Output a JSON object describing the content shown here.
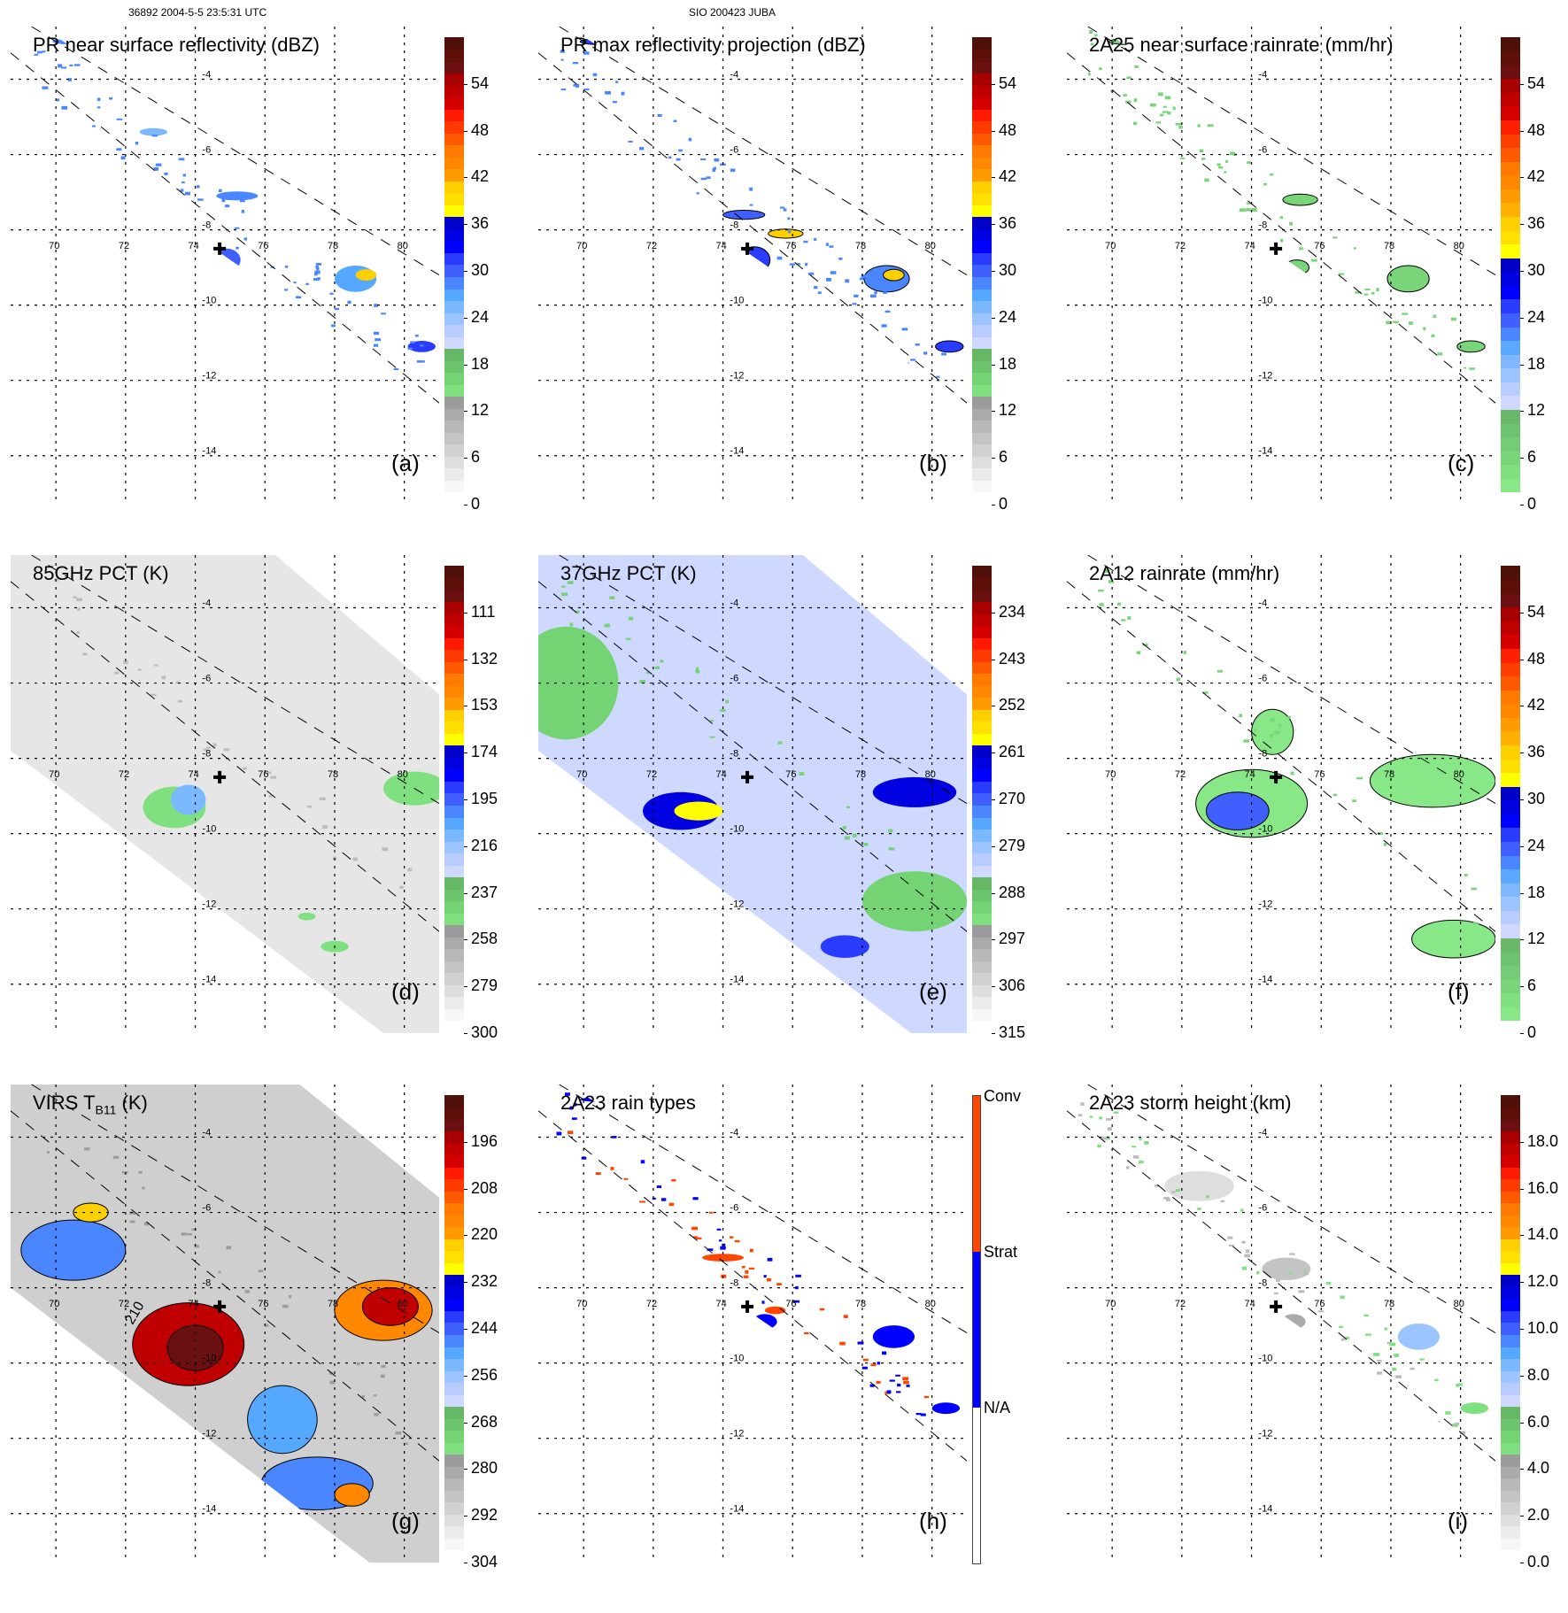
{
  "header": {
    "left": "36892 2004-5-5 23:5:31 UTC",
    "center": "SIO 200423 JUBA"
  },
  "chart_data": [
    {
      "id": "a",
      "type": "heatmap",
      "title": "PR near surface reflectivity (dBZ)",
      "panel_label": "(a)",
      "colorbar": {
        "ticks": [
          "0",
          "6",
          "12",
          "18",
          "24",
          "30",
          "36",
          "42",
          "48",
          "54"
        ],
        "range": [
          0,
          60
        ],
        "palette": "nasa"
      },
      "xticks": [
        "70",
        "72",
        "74",
        "76",
        "78",
        "80"
      ],
      "yticks": [
        "-4",
        "-6",
        "-8",
        "-10",
        "-12",
        "-14"
      ],
      "xlim": [
        68.7,
        81
      ],
      "ylim": [
        -15.3,
        -2.6
      ],
      "swath": "pr",
      "storm_center": {
        "lon": 74.7,
        "lat": -8.5
      }
    },
    {
      "id": "b",
      "type": "heatmap",
      "title": "PR max reflectivity projection (dBZ)",
      "panel_label": "(b)",
      "colorbar": {
        "ticks": [
          "0",
          "6",
          "12",
          "18",
          "24",
          "30",
          "36",
          "42",
          "48",
          "54"
        ],
        "range": [
          0,
          60
        ],
        "palette": "nasa"
      },
      "xticks": [
        "70",
        "72",
        "74",
        "76",
        "78",
        "80"
      ],
      "yticks": [
        "-4",
        "-6",
        "-8",
        "-10",
        "-12",
        "-14"
      ],
      "xlim": [
        68.7,
        81
      ],
      "ylim": [
        -15.3,
        -2.6
      ],
      "swath": "pr",
      "storm_center": {
        "lon": 74.7,
        "lat": -8.5
      }
    },
    {
      "id": "c",
      "type": "heatmap",
      "title": "2A25 near surface rainrate (mm/hr)",
      "panel_label": "(c)",
      "colorbar": {
        "ticks": [
          "0",
          "6",
          "12",
          "18",
          "24",
          "30",
          "36",
          "42",
          "48",
          "54"
        ],
        "range": [
          0,
          60
        ],
        "palette": "rain"
      },
      "xticks": [
        "70",
        "72",
        "74",
        "76",
        "78",
        "80"
      ],
      "yticks": [
        "-4",
        "-6",
        "-8",
        "-10",
        "-12",
        "-14"
      ],
      "xlim": [
        68.7,
        81
      ],
      "ylim": [
        -15.3,
        -2.6
      ],
      "swath": "pr",
      "storm_center": {
        "lon": 74.7,
        "lat": -8.5
      }
    },
    {
      "id": "d",
      "type": "heatmap",
      "title": "85GHz PCT (K)",
      "panel_label": "(d)",
      "colorbar": {
        "ticks": [
          "300",
          "279",
          "258",
          "237",
          "216",
          "195",
          "174",
          "153",
          "132",
          "111"
        ],
        "range": [
          300,
          90
        ],
        "palette": "nasa"
      },
      "xticks": [
        "70",
        "72",
        "74",
        "76",
        "78",
        "80"
      ],
      "yticks": [
        "-4",
        "-6",
        "-8",
        "-10",
        "-12",
        "-14"
      ],
      "xlim": [
        68.7,
        81
      ],
      "ylim": [
        -15.3,
        -2.6
      ],
      "swath": "tmi",
      "storm_center": {
        "lon": 74.7,
        "lat": -8.5
      }
    },
    {
      "id": "e",
      "type": "heatmap",
      "title": "37GHz PCT (K)",
      "panel_label": "(e)",
      "colorbar": {
        "ticks": [
          "315",
          "306",
          "297",
          "288",
          "279",
          "270",
          "261",
          "252",
          "243",
          "234"
        ],
        "range": [
          315,
          225
        ],
        "palette": "nasa"
      },
      "xticks": [
        "70",
        "72",
        "74",
        "76",
        "78",
        "80"
      ],
      "yticks": [
        "-4",
        "-6",
        "-8",
        "-10",
        "-12",
        "-14"
      ],
      "xlim": [
        68.7,
        81
      ],
      "ylim": [
        -15.3,
        -2.6
      ],
      "swath": "tmi",
      "storm_center": {
        "lon": 74.7,
        "lat": -8.5
      }
    },
    {
      "id": "f",
      "type": "heatmap",
      "title": "2A12 rainrate (mm/hr)",
      "panel_label": "(f)",
      "colorbar": {
        "ticks": [
          "0",
          "6",
          "12",
          "18",
          "24",
          "30",
          "36",
          "42",
          "48",
          "54"
        ],
        "range": [
          0,
          60
        ],
        "palette": "rain"
      },
      "xticks": [
        "70",
        "72",
        "74",
        "76",
        "78",
        "80"
      ],
      "yticks": [
        "-4",
        "-6",
        "-8",
        "-10",
        "-12",
        "-14"
      ],
      "xlim": [
        68.7,
        81
      ],
      "ylim": [
        -15.3,
        -2.6
      ],
      "swath": "tmi",
      "storm_center": {
        "lon": 74.7,
        "lat": -8.5
      }
    },
    {
      "id": "g",
      "type": "heatmap",
      "title": "VIRS T",
      "title_sub": "B11",
      "title_unit": " (K)",
      "panel_label": "(g)",
      "contour_label": "210",
      "colorbar": {
        "ticks": [
          "304",
          "292",
          "280",
          "268",
          "256",
          "244",
          "232",
          "220",
          "208",
          "196"
        ],
        "range": [
          304,
          184
        ],
        "palette": "nasa"
      },
      "xticks": [
        "70",
        "72",
        "74",
        "76",
        "78",
        "80"
      ],
      "yticks": [
        "-4",
        "-6",
        "-8",
        "-10",
        "-12",
        "-14"
      ],
      "xlim": [
        68.7,
        81
      ],
      "ylim": [
        -15.3,
        -2.6
      ],
      "swath": "virs",
      "storm_center": {
        "lon": 74.7,
        "lat": -8.5
      }
    },
    {
      "id": "h",
      "type": "heatmap",
      "title": "2A23 rain types",
      "panel_label": "(h)",
      "colorbar": {
        "categories": [
          {
            "label": "Conv",
            "color": "#ff4500"
          },
          {
            "label": "Strat",
            "color": "#0000ff"
          },
          {
            "label": "N/A",
            "color": "#ffffff"
          }
        ]
      },
      "xticks": [
        "70",
        "72",
        "74",
        "76",
        "78",
        "80"
      ],
      "yticks": [
        "-4",
        "-6",
        "-8",
        "-10",
        "-12",
        "-14"
      ],
      "xlim": [
        68.7,
        81
      ],
      "ylim": [
        -15.3,
        -2.6
      ],
      "swath": "pr",
      "storm_center": {
        "lon": 74.7,
        "lat": -8.5
      }
    },
    {
      "id": "i",
      "type": "heatmap",
      "title": "2A23 storm height (km)",
      "panel_label": "(i)",
      "colorbar": {
        "ticks": [
          "0.0",
          "2.0",
          "4.0",
          "6.0",
          "8.0",
          "10.0",
          "12.0",
          "14.0",
          "16.0",
          "18.0"
        ],
        "range": [
          0,
          20
        ],
        "palette": "nasa"
      },
      "xticks": [
        "70",
        "72",
        "74",
        "76",
        "78",
        "80"
      ],
      "yticks": [
        "-4",
        "-6",
        "-8",
        "-10",
        "-12",
        "-14"
      ],
      "xlim": [
        68.7,
        81
      ],
      "ylim": [
        -15.3,
        -2.6
      ],
      "swath": "pr",
      "storm_center": {
        "lon": 74.7,
        "lat": -8.5
      }
    }
  ],
  "palettes": {
    "nasa": [
      "#f7f7f7",
      "#ebebeb",
      "#dedede",
      "#d1d1d1",
      "#c4c4c4",
      "#b8b8b8",
      "#aaaaaa",
      "#9c9c9c",
      "#7ee07e",
      "#74d474",
      "#6cc46c",
      "#66b866",
      "#cfd8ff",
      "#b8ccff",
      "#9cc4ff",
      "#7ab8ff",
      "#55a8ff",
      "#4a86ff",
      "#3f60ff",
      "#2a3cff",
      "#0000ff",
      "#0000e0",
      "#0000c8",
      "#ffff00",
      "#ffe000",
      "#ffd000",
      "#ff9a00",
      "#ff8800",
      "#ff7a00",
      "#ff5a00",
      "#ff3a00",
      "#ff1a00",
      "#d40000",
      "#c00000",
      "#a80000",
      "#6a1010",
      "#5e1008",
      "#4e1008"
    ],
    "rain": [
      "#88e888",
      "#80e080",
      "#7ad47a",
      "#74cc74",
      "#6ec46e",
      "#68b868",
      "#d0d8ff",
      "#b8ccff",
      "#9cc4ff",
      "#80b8ff",
      "#5aa8ff",
      "#4a86ff",
      "#3f60ff",
      "#2a3cff",
      "#0000ff",
      "#0000e0",
      "#0000c8",
      "#ffff00",
      "#ffe000",
      "#ffd000",
      "#ffb000",
      "#ff9a00",
      "#ff8800",
      "#ff7a00",
      "#ff5a00",
      "#ff4000",
      "#ff2000",
      "#d40000",
      "#c00000",
      "#a80000",
      "#6a1010",
      "#5e1008",
      "#4e1008"
    ]
  }
}
